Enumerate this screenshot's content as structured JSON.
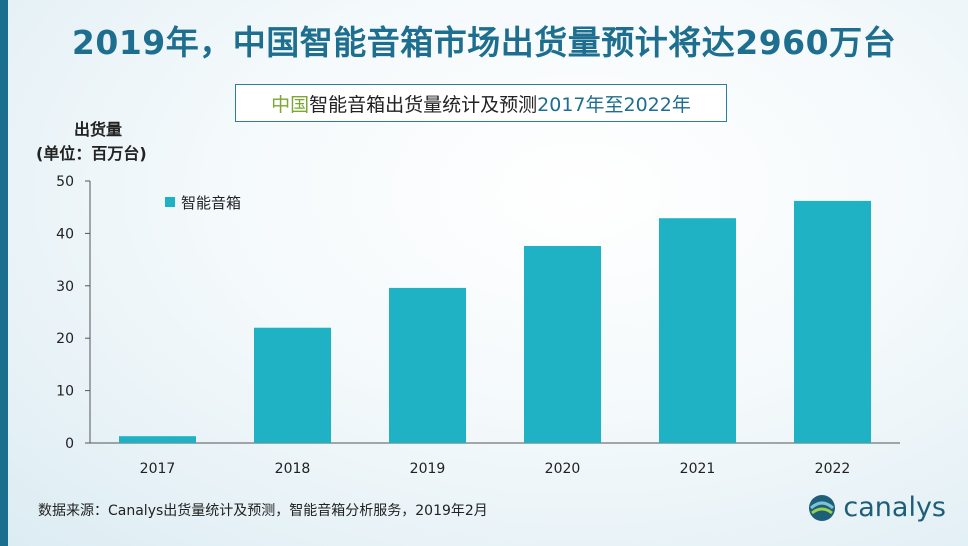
{
  "headline": "2019年，中国智能音箱市场出货量预计将达2960万台",
  "subtitle": {
    "part1": "中国",
    "part2": "智能音箱出货量统计及预测",
    "part3": " 2017年至2022年"
  },
  "unit_label": {
    "line1": "出货量",
    "line2": "(单位：百万台)"
  },
  "source": "数据来源：Canalys出货量统计及预测，智能音箱分析服务，2019年2月",
  "logo_text": "canalys",
  "colors": {
    "bar": "#1fb2c4",
    "accent": "#1d6e8f",
    "green": "#7aa832"
  },
  "chart_data": {
    "type": "bar",
    "categories": [
      "2017",
      "2018",
      "2019",
      "2020",
      "2021",
      "2022"
    ],
    "series": [
      {
        "name": "智能音箱",
        "values": [
          1.3,
          22.0,
          29.6,
          37.6,
          42.9,
          46.2
        ]
      }
    ],
    "title": "中国智能音箱出货量统计及预测 2017年至2022年",
    "xlabel": "",
    "ylabel": "出货量(单位：百万台)",
    "ylim": [
      0,
      50
    ],
    "yticks": [
      0,
      10,
      20,
      30,
      40,
      50
    ],
    "grid": false,
    "legend": "top-left"
  }
}
